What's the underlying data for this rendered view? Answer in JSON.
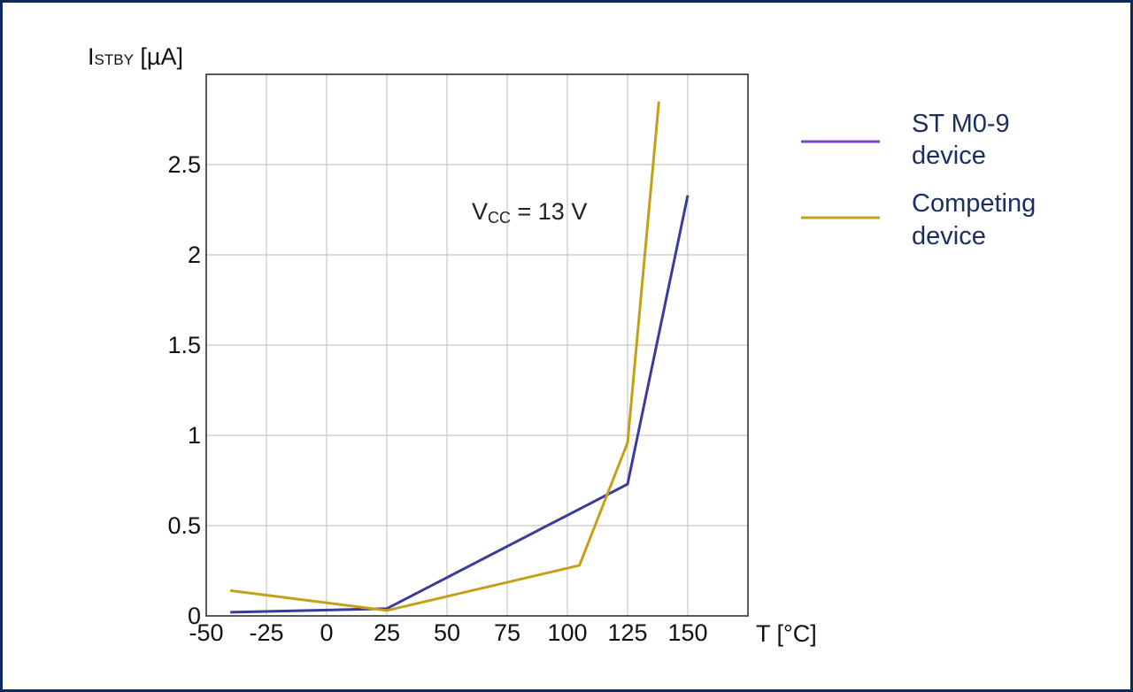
{
  "chart_data": {
    "type": "line",
    "ylabel_main": "I",
    "ylabel_sub": "STBY",
    "ylabel_unit": " [µA]",
    "xlabel": "T [°C]",
    "annotation_main": "V",
    "annotation_sub": "CC",
    "annotation_rest": " = 13 V",
    "xlim": [
      -50,
      175
    ],
    "ylim": [
      0,
      3.0
    ],
    "x_ticks": [
      "-50",
      "-25",
      "0",
      "25",
      "50",
      "75",
      "100",
      "125",
      "150"
    ],
    "x_tick_values": [
      -50,
      -25,
      0,
      25,
      50,
      75,
      100,
      125,
      150
    ],
    "y_ticks": [
      "0",
      "0.5",
      "1",
      "1.5",
      "2",
      "2.5"
    ],
    "y_tick_values": [
      0,
      0.5,
      1,
      1.5,
      2,
      2.5
    ],
    "grid": true,
    "legend_position": "right",
    "series": [
      {
        "name": "ST M0-9 device",
        "legend_lines": [
          "ST M0-9",
          "device"
        ],
        "color": "#3b3b9a",
        "points": [
          [
            -40,
            0.02
          ],
          [
            25,
            0.04
          ],
          [
            125,
            0.73
          ],
          [
            150,
            2.33
          ]
        ]
      },
      {
        "name": "Competing device",
        "legend_lines": [
          "Competing",
          "device"
        ],
        "color": "#c4a019",
        "points": [
          [
            -40,
            0.14
          ],
          [
            25,
            0.03
          ],
          [
            105,
            0.28
          ],
          [
            125,
            0.96
          ],
          [
            138,
            2.85
          ]
        ]
      }
    ]
  },
  "legend_colors": [
    "#7b3fc4",
    "#c4a019"
  ]
}
